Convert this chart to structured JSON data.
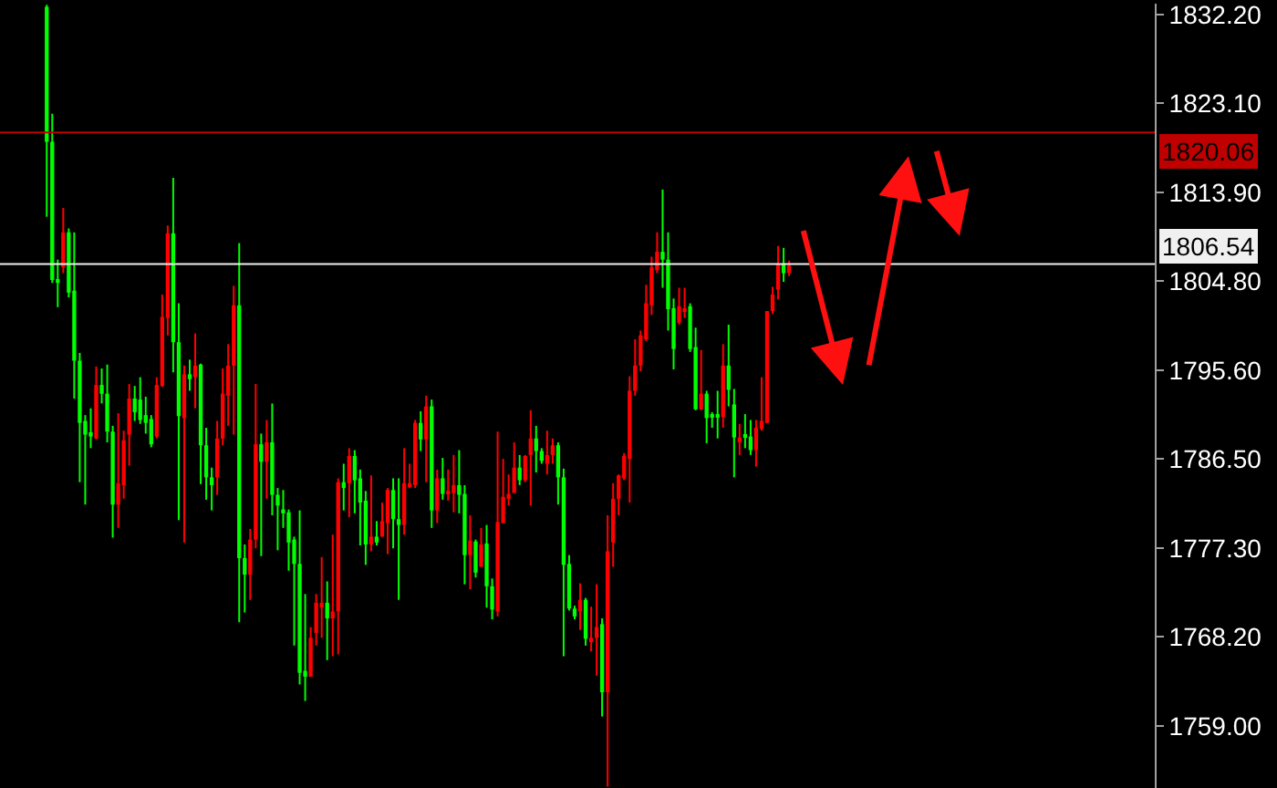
{
  "chart_data": {
    "type": "candlestick",
    "categories": [
      null,
      null,
      null,
      null,
      null,
      null,
      null,
      null,
      null,
      null,
      null,
      null,
      null,
      null,
      null,
      null,
      null,
      null,
      null,
      null,
      null,
      null,
      null,
      null,
      null,
      null,
      null,
      null,
      null,
      null,
      null,
      null,
      null,
      null,
      null,
      null,
      null,
      null,
      null,
      null,
      null,
      null,
      null,
      null,
      null,
      null,
      null,
      null,
      null,
      null,
      null,
      null,
      null,
      null,
      null,
      null,
      null,
      null,
      null,
      null,
      null,
      null,
      null,
      null,
      null,
      null,
      null,
      null,
      null,
      null,
      null,
      null,
      null,
      null,
      null,
      null,
      null,
      null,
      null,
      null,
      null,
      null,
      null,
      null,
      null,
      null,
      null,
      null,
      null,
      null,
      null,
      null,
      null,
      null,
      null,
      null,
      null,
      null,
      null,
      null,
      null,
      null,
      null,
      null,
      null,
      null,
      null,
      null,
      null,
      null,
      null,
      null,
      null,
      null,
      null,
      null,
      null,
      null,
      null,
      null,
      null,
      null,
      null,
      null,
      null,
      null,
      null,
      null,
      null,
      null,
      null,
      null,
      null,
      null,
      null,
      null,
      null,
      null,
      null,
      null,
      null,
      null,
      null,
      null,
      null,
      null,
      null,
      null,
      null,
      null,
      null,
      null,
      null,
      null,
      null,
      null,
      null,
      null,
      null,
      null,
      null,
      null,
      null,
      null,
      null,
      null,
      null,
      null,
      null,
      null,
      null,
      null,
      null,
      null,
      null,
      null,
      null,
      null,
      null,
      null,
      null,
      null,
      null,
      null,
      null,
      null,
      null,
      null,
      null,
      null,
      null,
      null,
      null,
      null,
      null,
      null,
      null,
      null,
      null,
      null,
      null,
      null,
      null,
      null,
      null,
      null,
      null,
      null,
      null,
      null
    ],
    "ohlc": [
      null,
      null,
      null,
      null,
      null,
      null,
      null,
      null,
      [
        1833.0,
        1833.2,
        1811.4,
        1819.1
      ],
      [
        1819.1,
        1822.0,
        1804.6,
        1804.9
      ],
      [
        1805.0,
        1807.0,
        1802.1,
        1804.6
      ],
      [
        1806.2,
        1812.3,
        1805.6,
        1809.8
      ],
      [
        1809.8,
        1810.2,
        1803.1,
        1803.6
      ],
      [
        1803.8,
        1809.8,
        1792.7,
        1796.6
      ],
      [
        1796.6,
        1797.4,
        1784.1,
        1790.2
      ],
      [
        1790.4,
        1791.0,
        1781.8,
        1789.0
      ],
      [
        1789.1,
        1791.7,
        1787.6,
        1788.8
      ],
      [
        1788.6,
        1796.0,
        1788.5,
        1794.1
      ],
      [
        1794.1,
        1795.8,
        1792.2,
        1793.2
      ],
      [
        1793.2,
        1796.2,
        1788.2,
        1789.3
      ],
      [
        1789.3,
        1789.9,
        1778.4,
        1781.8
      ],
      [
        1781.8,
        1791.2,
        1779.4,
        1784.0
      ],
      [
        1783.8,
        1789.4,
        1782.4,
        1788.4
      ],
      [
        1789.0,
        1794.2,
        1785.8,
        1792.7
      ],
      [
        1792.7,
        1794.0,
        1790.4,
        1791.3
      ],
      [
        1792.6,
        1794.9,
        1790.1,
        1790.5
      ],
      [
        1791.0,
        1792.9,
        1789.1,
        1790.2
      ],
      [
        1790.6,
        1791.0,
        1787.7,
        1788.0
      ],
      [
        1788.8,
        1794.9,
        1788.6,
        1794.1
      ],
      [
        1794.0,
        1803.4,
        1793.9,
        1801.1
      ],
      [
        1801.0,
        1810.5,
        1799.2,
        1809.7
      ],
      [
        1809.7,
        1815.4,
        1795.4,
        1798.5
      ],
      [
        1798.5,
        1802.5,
        1780.2,
        1790.9
      ],
      [
        1790.7,
        1796.1,
        1777.9,
        1795.2
      ],
      [
        1795.2,
        1796.7,
        1793.5,
        1794.7
      ],
      [
        1794.9,
        1799.4,
        1791.7,
        1796.1
      ],
      [
        1796.2,
        1796.3,
        1783.9,
        1787.9
      ],
      [
        1787.9,
        1789.7,
        1782.3,
        1784.6
      ],
      [
        1784.6,
        1785.6,
        1781.2,
        1783.8
      ],
      [
        1784.6,
        1790.4,
        1782.8,
        1788.6
      ],
      [
        1788.6,
        1795.8,
        1787.9,
        1793.2
      ],
      [
        1793.0,
        1798.3,
        1789.9,
        1796.1
      ],
      [
        1796.1,
        1804.3,
        1789.0,
        1802.3
      ],
      [
        1802.3,
        1808.7,
        1769.7,
        1776.3
      ],
      [
        1776.3,
        1777.7,
        1770.7,
        1774.6
      ],
      [
        1774.6,
        1779.3,
        1772.0,
        1778.2
      ],
      [
        1778.2,
        1794.2,
        1777.3,
        1788.0
      ],
      [
        1788.0,
        1789.1,
        1776.5,
        1786.2
      ],
      [
        1786.2,
        1790.5,
        1782.4,
        1788.2
      ],
      [
        1788.2,
        1792.2,
        1780.7,
        1782.8
      ],
      [
        1782.8,
        1783.5,
        1777.1,
        1781.7
      ],
      [
        1781.3,
        1783.3,
        1779.4,
        1780.9
      ],
      [
        1781.0,
        1781.3,
        1775.0,
        1777.9
      ],
      [
        1778.2,
        1778.5,
        1767.3,
        1775.7
      ],
      [
        1775.7,
        1781.2,
        1763.3,
        1764.5
      ],
      [
        1764.7,
        1772.6,
        1761.6,
        1764.1
      ],
      [
        1764.1,
        1769.2,
        1764.1,
        1768.1
      ],
      [
        1768.6,
        1772.6,
        1767.3,
        1771.7
      ],
      [
        1771.4,
        1776.4,
        1768.1,
        1771.7
      ],
      [
        1771.7,
        1773.9,
        1765.8,
        1770.1
      ],
      [
        1770.1,
        1778.7,
        1766.2,
        1770.8
      ],
      [
        1770.8,
        1784.5,
        1766.4,
        1784.1
      ],
      [
        1784.1,
        1786.0,
        1781.2,
        1783.5
      ],
      [
        1784.0,
        1787.6,
        1780.5,
        1786.8
      ],
      [
        1786.8,
        1787.4,
        1780.9,
        1784.3
      ],
      [
        1784.5,
        1785.4,
        1777.6,
        1782.0
      ],
      [
        1782.2,
        1783.2,
        1775.6,
        1777.7
      ],
      [
        1777.7,
        1784.8,
        1777.0,
        1778.5
      ],
      [
        1778.5,
        1780.1,
        1777.6,
        1777.9
      ],
      [
        1778.5,
        1782.0,
        1778.5,
        1780.1
      ],
      [
        1779.9,
        1783.5,
        1776.7,
        1783.3
      ],
      [
        1783.3,
        1784.5,
        1777.3,
        1780.3
      ],
      [
        1780.3,
        1784.5,
        1772.0,
        1779.7
      ],
      [
        1779.7,
        1787.6,
        1778.7,
        1784.0
      ],
      [
        1783.6,
        1786.0,
        1783.5,
        1784.0
      ],
      [
        1783.8,
        1790.5,
        1783.5,
        1790.2
      ],
      [
        1790.2,
        1791.4,
        1787.3,
        1788.5
      ],
      [
        1788.5,
        1793.0,
        1784.1,
        1791.9
      ],
      [
        1791.9,
        1792.6,
        1779.4,
        1781.2
      ],
      [
        1781.2,
        1785.4,
        1779.9,
        1784.5
      ],
      [
        1784.5,
        1786.6,
        1782.3,
        1782.9
      ],
      [
        1782.9,
        1785.4,
        1782.2,
        1783.2
      ],
      [
        1783.0,
        1786.9,
        1781.0,
        1783.8
      ],
      [
        1783.8,
        1787.4,
        1780.9,
        1782.8
      ],
      [
        1782.9,
        1783.8,
        1773.6,
        1776.6
      ],
      [
        1776.6,
        1780.7,
        1773.1,
        1778.1
      ],
      [
        1778.0,
        1778.2,
        1774.3,
        1774.8
      ],
      [
        1775.4,
        1779.4,
        1775.4,
        1777.7
      ],
      [
        1777.8,
        1779.7,
        1771.2,
        1773.4
      ],
      [
        1773.4,
        1774.2,
        1770.0,
        1771.0
      ],
      [
        1770.8,
        1789.3,
        1770.3,
        1780.0
      ],
      [
        1779.9,
        1786.5,
        1779.9,
        1782.6
      ],
      [
        1782.4,
        1784.9,
        1781.7,
        1782.9
      ],
      [
        1783.0,
        1788.2,
        1783.0,
        1785.6
      ],
      [
        1785.6,
        1786.9,
        1783.8,
        1784.3
      ],
      [
        1784.3,
        1786.9,
        1784.1,
        1786.8
      ],
      [
        1786.9,
        1791.5,
        1781.7,
        1788.6
      ],
      [
        1788.6,
        1789.9,
        1785.1,
        1787.3
      ],
      [
        1787.3,
        1787.6,
        1786.0,
        1786.3
      ],
      [
        1786.0,
        1789.4,
        1784.9,
        1786.9
      ],
      [
        1786.9,
        1788.6,
        1786.0,
        1787.9
      ],
      [
        1787.9,
        1788.2,
        1781.8,
        1784.6
      ],
      [
        1784.6,
        1785.5,
        1766.2,
        1775.6
      ],
      [
        1775.7,
        1776.6,
        1770.9,
        1771.1
      ],
      [
        1771.1,
        1771.4,
        1770.0,
        1770.3
      ],
      [
        1770.8,
        1773.7,
        1768.9,
        1772.0
      ],
      [
        1772.0,
        1772.2,
        1767.3,
        1768.0
      ],
      [
        1767.8,
        1771.3,
        1766.7,
        1768.1
      ],
      [
        1768.1,
        1773.6,
        1764.2,
        1769.2
      ],
      [
        1769.5,
        1770.1,
        1760.0,
        1762.5
      ],
      [
        1762.5,
        1780.7,
        1752.8,
        1777.0
      ],
      [
        1777.9,
        1784.0,
        1775.4,
        1782.4
      ],
      [
        1782.4,
        1784.9,
        1780.7,
        1784.8
      ],
      [
        1784.5,
        1787.1,
        1784.3,
        1786.8
      ],
      [
        1786.5,
        1795.0,
        1782.0,
        1793.5
      ],
      [
        1793.5,
        1798.8,
        1793.0,
        1796.1
      ],
      [
        1796.1,
        1799.7,
        1795.5,
        1799.2
      ],
      [
        1798.8,
        1804.4,
        1798.6,
        1802.5
      ],
      [
        1802.3,
        1807.3,
        1801.3,
        1806.2
      ],
      [
        1805.9,
        1809.8,
        1805.6,
        1807.8
      ],
      [
        1807.8,
        1814.2,
        1804.1,
        1807.0
      ],
      [
        1807.0,
        1809.8,
        1799.7,
        1801.9
      ],
      [
        1802.0,
        1803.0,
        1795.7,
        1797.8
      ],
      [
        1800.5,
        1804.1,
        1800.3,
        1802.2
      ],
      [
        1801.7,
        1804.1,
        1801.0,
        1801.9
      ],
      [
        1802.2,
        1802.5,
        1797.5,
        1797.8
      ],
      [
        1798.0,
        1800.0,
        1791.5,
        1791.6
      ],
      [
        1791.6,
        1797.7,
        1791.5,
        1793.2
      ],
      [
        1793.2,
        1793.5,
        1788.1,
        1790.7
      ],
      [
        1791.0,
        1791.3,
        1789.7,
        1790.9
      ],
      [
        1791.0,
        1793.5,
        1788.6,
        1790.8
      ],
      [
        1790.8,
        1798.3,
        1789.7,
        1796.1
      ],
      [
        1796.1,
        1800.3,
        1791.9,
        1793.6
      ],
      [
        1792.1,
        1793.7,
        1784.6,
        1788.7
      ],
      [
        1788.2,
        1790.1,
        1786.9,
        1788.7
      ],
      [
        1788.9,
        1791.1,
        1787.6,
        1788.7
      ],
      [
        1788.8,
        1790.5,
        1786.9,
        1787.4
      ],
      [
        1787.4,
        1790.5,
        1785.7,
        1789.7
      ],
      [
        1789.6,
        1794.9,
        1789.4,
        1790.4
      ],
      [
        1790.2,
        1801.7,
        1790.2,
        1801.7
      ],
      [
        1801.7,
        1804.2,
        1801.4,
        1803.4
      ],
      [
        1803.9,
        1808.4,
        1802.9,
        1806.6
      ],
      [
        1806.6,
        1808.2,
        1804.7,
        1805.6
      ],
      [
        1805.6,
        1806.9,
        1805.3,
        1806.4
      ],
      null,
      null,
      null,
      null,
      null,
      null,
      null,
      null,
      null,
      null,
      null,
      null,
      null,
      null,
      null,
      null,
      null,
      null,
      null,
      null,
      null,
      null,
      null,
      null,
      null,
      null,
      null,
      null,
      null,
      null,
      null,
      null,
      null,
      null,
      null,
      null,
      null,
      null,
      null,
      null,
      null,
      null,
      null,
      null,
      null,
      null,
      null,
      null,
      null,
      null,
      null,
      null,
      null,
      null,
      null,
      null,
      null,
      null,
      null,
      null,
      null,
      null,
      null,
      null,
      null,
      null
    ],
    "colors": [
      null,
      null,
      null,
      null,
      null,
      null,
      null,
      null,
      "#00ff00",
      "#00ff00",
      "#00ff00",
      "#ff0000",
      "#00ff00",
      "#00ff00",
      "#00ff00",
      "#00ff00",
      "#00ff00",
      "#ff0000",
      "#00ff00",
      "#00ff00",
      "#00ff00",
      "#ff0000",
      "#ff0000",
      "#ff0000",
      "#00ff00",
      "#00ff00",
      "#00ff00",
      "#00ff00",
      "#ff0000",
      "#ff0000",
      "#ff0000",
      "#00ff00",
      "#00ff00",
      "#ff0000",
      "#00ff00",
      "#ff0000",
      "#00ff00",
      "#00ff00",
      "#00ff00",
      "#ff0000",
      "#ff0000",
      "#ff0000",
      "#ff0000",
      "#00ff00",
      "#00ff00",
      "#ff0000",
      "#ff0000",
      "#00ff00",
      "#ff0000",
      "#00ff00",
      "#00ff00",
      "#00ff00",
      "#00ff00",
      "#00ff00",
      "#00ff00",
      "#00ff00",
      "#ff0000",
      "#ff0000",
      "#ff0000",
      "#00ff00",
      "#ff0000",
      "#ff0000",
      "#00ff00",
      "#ff0000",
      "#00ff00",
      "#00ff00",
      "#00ff00",
      "#ff0000",
      "#00ff00",
      "#ff0000",
      "#ff0000",
      "#00ff00",
      "#00ff00",
      "#ff0000",
      "#ff0000",
      "#ff0000",
      "#00ff00",
      "#ff0000",
      "#00ff00",
      "#ff0000",
      "#00ff00",
      "#ff0000",
      "#ff0000",
      "#00ff00",
      "#00ff00",
      "#ff0000",
      "#00ff00",
      "#ff0000",
      "#00ff00",
      "#00ff00",
      "#ff0000",
      "#ff0000",
      "#ff0000",
      "#ff0000",
      "#00ff00",
      "#ff0000",
      "#ff0000",
      "#00ff00",
      "#00ff00",
      "#ff0000",
      "#ff0000",
      "#00ff00",
      "#00ff00",
      "#00ff00",
      "#00ff00",
      "#ff0000",
      "#00ff00",
      "#ff0000",
      "#ff0000",
      "#00ff00",
      "#ff0000",
      "#ff0000",
      "#ff0000",
      "#ff0000",
      "#ff0000",
      "#ff0000",
      "#ff0000",
      "#ff0000",
      "#ff0000",
      "#ff0000",
      "#00ff00",
      "#00ff00",
      "#00ff00",
      "#ff0000",
      "#ff0000",
      "#00ff00",
      "#00ff00",
      "#ff0000",
      "#00ff00",
      "#00ff00",
      "#00ff00",
      "#ff0000",
      "#00ff00",
      "#00ff00",
      "#ff0000",
      "#00ff00",
      "#00ff00",
      "#ff0000",
      "#ff0000",
      "#ff0000",
      "#ff0000",
      "#ff0000",
      "#00ff00",
      "#ff0000",
      null,
      null,
      null,
      null,
      null,
      null,
      null,
      null,
      null,
      null,
      null,
      null,
      null,
      null,
      null,
      null,
      null,
      null,
      null,
      null,
      null,
      null,
      null,
      null,
      null,
      null,
      null,
      null,
      null,
      null,
      null,
      null,
      null,
      null,
      null,
      null,
      null,
      null,
      null,
      null,
      null,
      null,
      null,
      null,
      null,
      null,
      null,
      null,
      null,
      null,
      null,
      null,
      null,
      null,
      null,
      null,
      null,
      null,
      null,
      null,
      null,
      null,
      null,
      null,
      null,
      null
    ],
    "ylim": [
      1752.65,
      1833.32
    ],
    "yticks": [
      {
        "value": 1832.2,
        "label": "1832.20"
      },
      {
        "value": 1823.1,
        "label": "1823.10"
      },
      {
        "value": 1813.9,
        "label": "1813.90"
      },
      {
        "value": 1804.8,
        "label": "1804.80"
      },
      {
        "value": 1795.6,
        "label": "1795.60"
      },
      {
        "value": 1786.5,
        "label": "1786.50"
      },
      {
        "value": 1777.3,
        "label": "1777.30"
      },
      {
        "value": 1768.2,
        "label": "1768.20"
      },
      {
        "value": 1759.0,
        "label": "1759.00"
      }
    ],
    "ref_lines": [
      {
        "axis": "y",
        "value": 1820.06,
        "label": "1820.06",
        "color": "#c00000"
      },
      {
        "axis": "y",
        "value": 1806.54,
        "label": "1806.54",
        "color": "#f0f0f0"
      }
    ],
    "tick_labels": "y",
    "grid": false
  }
}
